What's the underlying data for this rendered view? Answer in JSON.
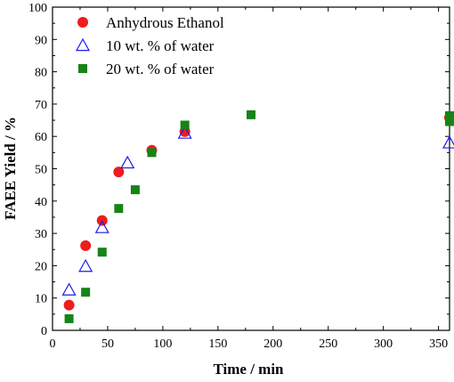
{
  "chart_data": {
    "type": "scatter",
    "xlabel": "Time / min",
    "ylabel": "FAEE Yield / %",
    "xlim": [
      0,
      360
    ],
    "ylim": [
      0,
      100
    ],
    "xticks": [
      0,
      50,
      100,
      150,
      200,
      250,
      300,
      350
    ],
    "yticks": [
      0,
      10,
      20,
      30,
      40,
      50,
      60,
      70,
      80,
      90,
      100
    ],
    "grid": false,
    "legend": "top-left",
    "series": [
      {
        "name": "Anhydrous Ethanol",
        "marker": "filled-circle",
        "color": "#ee1c1c",
        "points": [
          [
            15,
            7.8
          ],
          [
            30,
            26.2
          ],
          [
            45,
            34.0
          ],
          [
            60,
            49.0
          ],
          [
            90,
            55.7
          ],
          [
            120,
            61.5
          ],
          [
            360,
            65.8
          ]
        ]
      },
      {
        "name": "10 wt. % of water",
        "marker": "open-triangle",
        "color": "#1a1aee",
        "points": [
          [
            15,
            12.5
          ],
          [
            30,
            19.8
          ],
          [
            45,
            31.8
          ],
          [
            68,
            51.8
          ],
          [
            120,
            61.0
          ],
          [
            360,
            58.0
          ]
        ]
      },
      {
        "name": "20 wt. % of water",
        "marker": "filled-square",
        "color": "#168416",
        "points": [
          [
            15,
            3.6
          ],
          [
            30,
            11.8
          ],
          [
            45,
            24.2
          ],
          [
            60,
            37.7
          ],
          [
            75,
            43.5
          ],
          [
            90,
            55.0
          ],
          [
            120,
            63.5
          ],
          [
            180,
            66.7
          ],
          [
            360,
            64.6
          ],
          [
            360,
            66.4
          ]
        ]
      }
    ]
  }
}
